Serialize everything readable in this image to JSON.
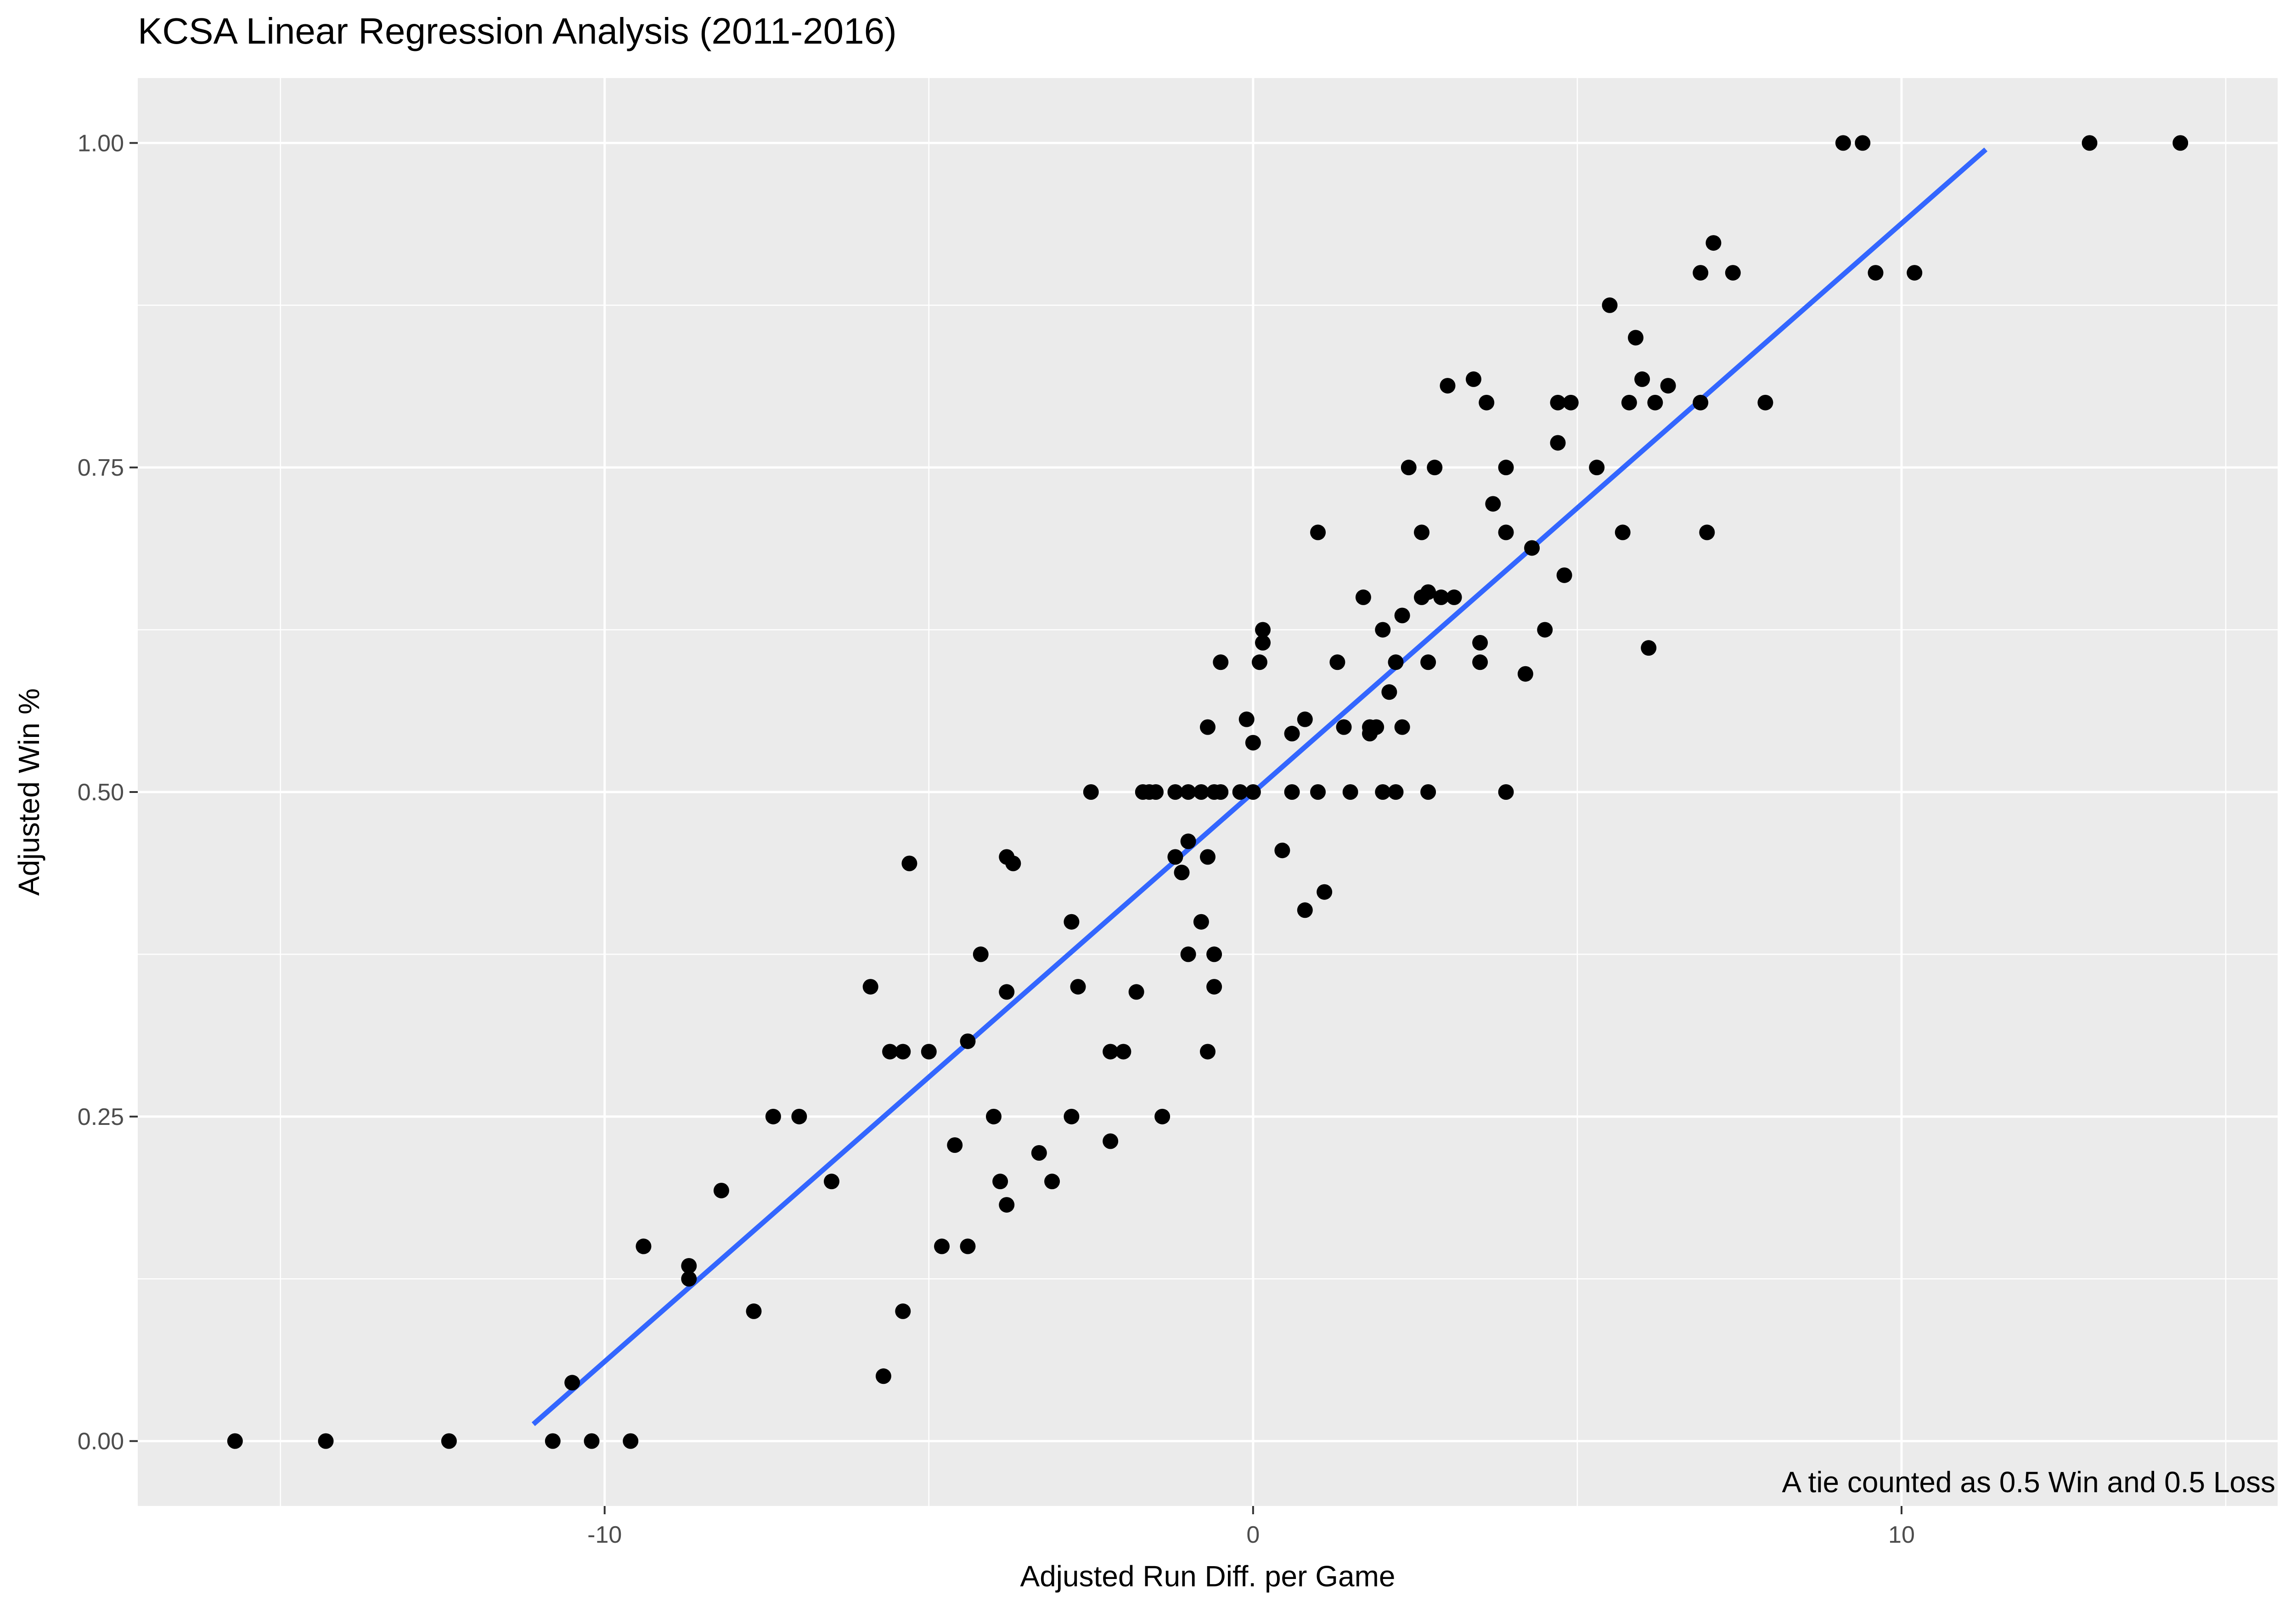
{
  "chart_data": {
    "type": "scatter",
    "title": "KCSA Linear Regression Analysis (2011-2016)",
    "xlabel": "Adjusted Run Diff. per Game",
    "ylabel": "Adjusted Win %",
    "annotation": "A tie counted as 0.5 Win and 0.5 Loss",
    "xlim": [
      -17.2,
      15.8
    ],
    "ylim": [
      -0.05,
      1.05
    ],
    "x_ticks": [
      -10,
      0,
      10
    ],
    "x_tick_labels": [
      "-10",
      "0",
      "10"
    ],
    "y_ticks": [
      0,
      0.25,
      0.5,
      0.75,
      1.0
    ],
    "y_tick_labels": [
      "0.00",
      "0.25",
      "0.50",
      "0.75",
      "1.00"
    ],
    "grid": true,
    "legend": "none",
    "colors": {
      "panel": "#ebebeb",
      "points": "#000000",
      "fit_line": "#3366ff",
      "grid": "#ffffff"
    },
    "fit_line": {
      "x": [
        -11.1,
        11.3
      ],
      "y": [
        0.013,
        0.995
      ]
    },
    "points": [
      {
        "x": -15.7,
        "y": 0.0
      },
      {
        "x": -14.3,
        "y": 0.0
      },
      {
        "x": -12.4,
        "y": 0.0
      },
      {
        "x": -10.8,
        "y": 0.0
      },
      {
        "x": -10.2,
        "y": 0.0
      },
      {
        "x": -9.6,
        "y": 0.0
      },
      {
        "x": -10.5,
        "y": 0.045
      },
      {
        "x": -9.4,
        "y": 0.15
      },
      {
        "x": -8.7,
        "y": 0.135
      },
      {
        "x": -8.7,
        "y": 0.125
      },
      {
        "x": -8.2,
        "y": 0.193
      },
      {
        "x": -7.7,
        "y": 0.1
      },
      {
        "x": -7.4,
        "y": 0.25
      },
      {
        "x": -7.0,
        "y": 0.25
      },
      {
        "x": -6.5,
        "y": 0.2
      },
      {
        "x": -5.9,
        "y": 0.35
      },
      {
        "x": -5.7,
        "y": 0.05
      },
      {
        "x": -5.6,
        "y": 0.3
      },
      {
        "x": -5.4,
        "y": 0.3
      },
      {
        "x": -5.3,
        "y": 0.445
      },
      {
        "x": -5.4,
        "y": 0.1
      },
      {
        "x": -5.0,
        "y": 0.3
      },
      {
        "x": -4.8,
        "y": 0.15
      },
      {
        "x": -4.6,
        "y": 0.228
      },
      {
        "x": -4.4,
        "y": 0.15
      },
      {
        "x": -4.4,
        "y": 0.308
      },
      {
        "x": -4.2,
        "y": 0.375
      },
      {
        "x": -4.0,
        "y": 0.25
      },
      {
        "x": -3.9,
        "y": 0.2
      },
      {
        "x": -3.8,
        "y": 0.45
      },
      {
        "x": -3.7,
        "y": 0.445
      },
      {
        "x": -3.8,
        "y": 0.346
      },
      {
        "x": -3.8,
        "y": 0.182
      },
      {
        "x": -3.3,
        "y": 0.222
      },
      {
        "x": -3.1,
        "y": 0.2
      },
      {
        "x": -2.8,
        "y": 0.4
      },
      {
        "x": -2.8,
        "y": 0.25
      },
      {
        "x": -2.7,
        "y": 0.35
      },
      {
        "x": -2.5,
        "y": 0.5
      },
      {
        "x": -2.2,
        "y": 0.3
      },
      {
        "x": -2.2,
        "y": 0.231
      },
      {
        "x": -2.0,
        "y": 0.3
      },
      {
        "x": -1.8,
        "y": 0.346
      },
      {
        "x": -1.7,
        "y": 0.5
      },
      {
        "x": -1.6,
        "y": 0.5
      },
      {
        "x": -1.5,
        "y": 0.5
      },
      {
        "x": -1.4,
        "y": 0.25
      },
      {
        "x": -1.2,
        "y": 0.5
      },
      {
        "x": -1.2,
        "y": 0.45
      },
      {
        "x": -1.1,
        "y": 0.438
      },
      {
        "x": -1.0,
        "y": 0.5
      },
      {
        "x": -1.0,
        "y": 0.462
      },
      {
        "x": -1.0,
        "y": 0.375
      },
      {
        "x": -0.8,
        "y": 0.5
      },
      {
        "x": -0.8,
        "y": 0.4
      },
      {
        "x": -0.7,
        "y": 0.55
      },
      {
        "x": -0.7,
        "y": 0.45
      },
      {
        "x": -0.7,
        "y": 0.3
      },
      {
        "x": -0.6,
        "y": 0.5
      },
      {
        "x": -0.6,
        "y": 0.375
      },
      {
        "x": -0.6,
        "y": 0.35
      },
      {
        "x": -0.5,
        "y": 0.5
      },
      {
        "x": -0.5,
        "y": 0.6
      },
      {
        "x": -0.2,
        "y": 0.5
      },
      {
        "x": -0.1,
        "y": 0.556
      },
      {
        "x": 0.0,
        "y": 0.538
      },
      {
        "x": 0.0,
        "y": 0.5
      },
      {
        "x": 0.1,
        "y": 0.6
      },
      {
        "x": 0.15,
        "y": 0.625
      },
      {
        "x": 0.15,
        "y": 0.615
      },
      {
        "x": 0.45,
        "y": 0.455
      },
      {
        "x": 0.6,
        "y": 0.545
      },
      {
        "x": 0.6,
        "y": 0.5
      },
      {
        "x": 0.8,
        "y": 0.556
      },
      {
        "x": 0.8,
        "y": 0.409
      },
      {
        "x": 1.0,
        "y": 0.7
      },
      {
        "x": 1.0,
        "y": 0.5
      },
      {
        "x": 1.1,
        "y": 0.423
      },
      {
        "x": 1.3,
        "y": 0.6
      },
      {
        "x": 1.4,
        "y": 0.55
      },
      {
        "x": 1.5,
        "y": 0.5
      },
      {
        "x": 1.7,
        "y": 0.65
      },
      {
        "x": 1.8,
        "y": 0.55
      },
      {
        "x": 1.8,
        "y": 0.545
      },
      {
        "x": 1.9,
        "y": 0.55
      },
      {
        "x": 2.0,
        "y": 0.625
      },
      {
        "x": 2.0,
        "y": 0.5
      },
      {
        "x": 2.1,
        "y": 0.577
      },
      {
        "x": 2.2,
        "y": 0.6
      },
      {
        "x": 2.2,
        "y": 0.5
      },
      {
        "x": 2.3,
        "y": 0.636
      },
      {
        "x": 2.3,
        "y": 0.55
      },
      {
        "x": 2.4,
        "y": 0.75
      },
      {
        "x": 2.6,
        "y": 0.7
      },
      {
        "x": 2.6,
        "y": 0.65
      },
      {
        "x": 2.7,
        "y": 0.654
      },
      {
        "x": 2.7,
        "y": 0.6
      },
      {
        "x": 2.7,
        "y": 0.5
      },
      {
        "x": 2.8,
        "y": 0.75
      },
      {
        "x": 2.9,
        "y": 0.65
      },
      {
        "x": 3.0,
        "y": 0.813
      },
      {
        "x": 3.1,
        "y": 0.65
      },
      {
        "x": 3.4,
        "y": 0.818
      },
      {
        "x": 3.5,
        "y": 0.615
      },
      {
        "x": 3.5,
        "y": 0.6
      },
      {
        "x": 3.6,
        "y": 0.8
      },
      {
        "x": 3.7,
        "y": 0.722
      },
      {
        "x": 3.9,
        "y": 0.75
      },
      {
        "x": 3.9,
        "y": 0.7
      },
      {
        "x": 3.9,
        "y": 0.5
      },
      {
        "x": 4.2,
        "y": 0.591
      },
      {
        "x": 4.3,
        "y": 0.688
      },
      {
        "x": 4.5,
        "y": 0.625
      },
      {
        "x": 4.7,
        "y": 0.769
      },
      {
        "x": 4.7,
        "y": 0.8
      },
      {
        "x": 4.8,
        "y": 0.667
      },
      {
        "x": 4.9,
        "y": 0.8
      },
      {
        "x": 5.3,
        "y": 0.75
      },
      {
        "x": 5.5,
        "y": 0.875
      },
      {
        "x": 5.7,
        "y": 0.7
      },
      {
        "x": 5.8,
        "y": 0.8
      },
      {
        "x": 5.9,
        "y": 0.85
      },
      {
        "x": 6.0,
        "y": 0.818
      },
      {
        "x": 6.1,
        "y": 0.611
      },
      {
        "x": 6.2,
        "y": 0.8
      },
      {
        "x": 6.4,
        "y": 0.813
      },
      {
        "x": 6.9,
        "y": 0.9
      },
      {
        "x": 6.9,
        "y": 0.8
      },
      {
        "x": 7.0,
        "y": 0.7
      },
      {
        "x": 7.1,
        "y": 0.923
      },
      {
        "x": 7.4,
        "y": 0.9
      },
      {
        "x": 7.9,
        "y": 0.8
      },
      {
        "x": 9.1,
        "y": 1.0
      },
      {
        "x": 9.4,
        "y": 1.0
      },
      {
        "x": 9.6,
        "y": 0.9
      },
      {
        "x": 10.2,
        "y": 0.9
      },
      {
        "x": 12.9,
        "y": 1.0
      },
      {
        "x": 14.3,
        "y": 1.0
      }
    ]
  }
}
